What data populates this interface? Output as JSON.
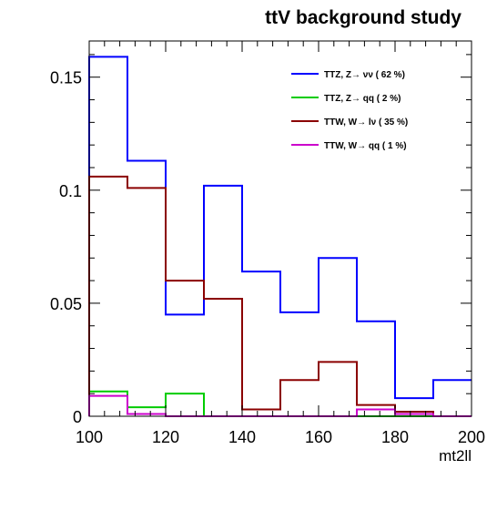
{
  "chart_data": {
    "type": "step-histogram",
    "title": "ttV background study",
    "xlabel": "mt2ll",
    "ylabel": "",
    "xlim": [
      100,
      200
    ],
    "ylim": [
      0,
      0.166
    ],
    "x_ticks": [
      100,
      120,
      140,
      160,
      180,
      200
    ],
    "x_tick_labels": [
      "100",
      "120",
      "140",
      "160",
      "180",
      "200"
    ],
    "y_ticks": [
      0,
      0.05,
      0.1,
      0.15
    ],
    "y_tick_labels": [
      "0",
      "0.05",
      "0.1",
      "0.15"
    ],
    "bin_edges": [
      100,
      110,
      120,
      130,
      140,
      150,
      160,
      170,
      180,
      190,
      200
    ],
    "legend_position": "top-right",
    "grid": false,
    "series": [
      {
        "name": "TTZ, Z→ νν (   62 %)",
        "color": "#0000ff",
        "values": [
          0.159,
          0.113,
          0.045,
          0.102,
          0.064,
          0.046,
          0.07,
          0.042,
          0.008,
          0.016
        ]
      },
      {
        "name": "TTZ, Z→ qq (    2 %)",
        "color": "#00cc00",
        "values": [
          0.011,
          0.004,
          0.01,
          0.0,
          0.0,
          0.0,
          0.0,
          0.0,
          0.0,
          0.0
        ]
      },
      {
        "name": "TTW, W→ lν (   35 %)",
        "color": "#8b0000",
        "values": [
          0.106,
          0.101,
          0.06,
          0.052,
          0.003,
          0.016,
          0.024,
          0.005,
          0.002,
          0.0
        ]
      },
      {
        "name": "TTW, W→ qq (    1 %)",
        "color": "#cc00cc",
        "values": [
          0.009,
          0.001,
          0.0,
          0.0,
          0.0,
          0.0,
          0.0,
          0.003,
          0.001,
          0.0
        ]
      }
    ]
  }
}
